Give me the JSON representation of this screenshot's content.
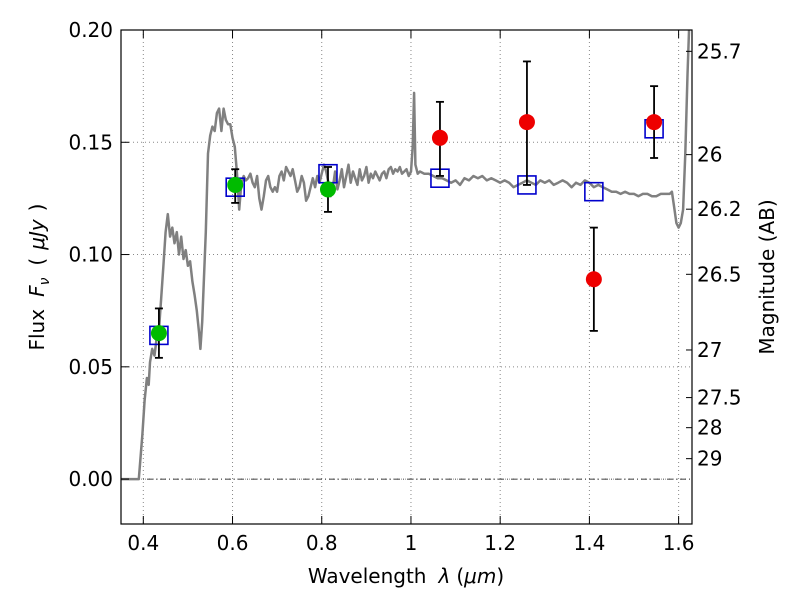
{
  "chart_data": {
    "type": "line",
    "xlabel_prefix": "Wavelength",
    "xlabel_symbol": "λ",
    "xlabel_unit": "μm",
    "ylabel_prefix": "Flux",
    "ylabel_symbol": "F",
    "ylabel_subscript": "ν",
    "ylabel_unit": "μJy",
    "y2label": "Magnitude (AB)",
    "xlim": [
      0.35,
      1.63
    ],
    "ylim": [
      -0.02,
      0.2
    ],
    "grid": true,
    "x_ticks": [
      0.4,
      0.6,
      0.8,
      1.0,
      1.2,
      1.4,
      1.6
    ],
    "x_tick_labels": [
      "0.4",
      "0.6",
      "0.8",
      "1",
      "1.2",
      "1.4",
      "1.6"
    ],
    "y_ticks": [
      0.0,
      0.05,
      0.1,
      0.15,
      0.2
    ],
    "y_tick_labels": [
      "0.00",
      "0.05",
      "0.10",
      "0.15",
      "0.20"
    ],
    "mag_ticks": [
      {
        "label": "25.7",
        "flux": 0.1905
      },
      {
        "label": "26",
        "flux": 0.1445
      },
      {
        "label": "26.2",
        "flux": 0.1202
      },
      {
        "label": "26.5",
        "flux": 0.0912
      },
      {
        "label": "27",
        "flux": 0.0575
      },
      {
        "label": "27.5",
        "flux": 0.0363
      },
      {
        "label": "28",
        "flux": 0.0229
      },
      {
        "label": "29",
        "flux": 0.0091
      }
    ],
    "colors": {
      "model": "#808080",
      "model_photometry": "#0000cc",
      "optical": "#00bb00",
      "nir": "#ee0000",
      "errorbar": "#000000",
      "zero_line": "#000000",
      "grid": "#888888"
    },
    "series": [
      {
        "role": "model spectrum",
        "points": [
          [
            0.35,
            0.0
          ],
          [
            0.39,
            0.0
          ],
          [
            0.398,
            0.02
          ],
          [
            0.403,
            0.035
          ],
          [
            0.408,
            0.045
          ],
          [
            0.412,
            0.042
          ],
          [
            0.415,
            0.052
          ],
          [
            0.42,
            0.058
          ],
          [
            0.425,
            0.055
          ],
          [
            0.43,
            0.063
          ],
          [
            0.435,
            0.066
          ],
          [
            0.44,
            0.08
          ],
          [
            0.445,
            0.095
          ],
          [
            0.45,
            0.11
          ],
          [
            0.455,
            0.118
          ],
          [
            0.46,
            0.108
          ],
          [
            0.465,
            0.112
          ],
          [
            0.47,
            0.105
          ],
          [
            0.475,
            0.11
          ],
          [
            0.48,
            0.1
          ],
          [
            0.485,
            0.108
          ],
          [
            0.49,
            0.098
          ],
          [
            0.495,
            0.102
          ],
          [
            0.5,
            0.095
          ],
          [
            0.505,
            0.097
          ],
          [
            0.51,
            0.088
          ],
          [
            0.515,
            0.082
          ],
          [
            0.52,
            0.075
          ],
          [
            0.525,
            0.065
          ],
          [
            0.528,
            0.058
          ],
          [
            0.532,
            0.07
          ],
          [
            0.54,
            0.11
          ],
          [
            0.545,
            0.145
          ],
          [
            0.55,
            0.153
          ],
          [
            0.555,
            0.157
          ],
          [
            0.56,
            0.155
          ],
          [
            0.565,
            0.163
          ],
          [
            0.57,
            0.165
          ],
          [
            0.575,
            0.155
          ],
          [
            0.58,
            0.165
          ],
          [
            0.585,
            0.16
          ],
          [
            0.59,
            0.158
          ],
          [
            0.595,
            0.158
          ],
          [
            0.6,
            0.152
          ],
          [
            0.605,
            0.148
          ],
          [
            0.61,
            0.136
          ],
          [
            0.615,
            0.12
          ],
          [
            0.62,
            0.132
          ],
          [
            0.625,
            0.135
          ],
          [
            0.63,
            0.133
          ],
          [
            0.635,
            0.134
          ],
          [
            0.64,
            0.136
          ],
          [
            0.645,
            0.132
          ],
          [
            0.65,
            0.13
          ],
          [
            0.655,
            0.135
          ],
          [
            0.66,
            0.125
          ],
          [
            0.665,
            0.12
          ],
          [
            0.67,
            0.126
          ],
          [
            0.675,
            0.133
          ],
          [
            0.68,
            0.135
          ],
          [
            0.685,
            0.13
          ],
          [
            0.69,
            0.128
          ],
          [
            0.695,
            0.13
          ],
          [
            0.7,
            0.128
          ],
          [
            0.705,
            0.135
          ],
          [
            0.71,
            0.137
          ],
          [
            0.715,
            0.133
          ],
          [
            0.72,
            0.139
          ],
          [
            0.725,
            0.137
          ],
          [
            0.73,
            0.135
          ],
          [
            0.735,
            0.138
          ],
          [
            0.74,
            0.133
          ],
          [
            0.745,
            0.128
          ],
          [
            0.75,
            0.13
          ],
          [
            0.755,
            0.135
          ],
          [
            0.76,
            0.132
          ],
          [
            0.765,
            0.124
          ],
          [
            0.77,
            0.126
          ],
          [
            0.775,
            0.13
          ],
          [
            0.78,
            0.134
          ],
          [
            0.785,
            0.13
          ],
          [
            0.79,
            0.135
          ],
          [
            0.795,
            0.132
          ],
          [
            0.8,
            0.136
          ],
          [
            0.805,
            0.14
          ],
          [
            0.81,
            0.137
          ],
          [
            0.815,
            0.132
          ],
          [
            0.82,
            0.126
          ],
          [
            0.825,
            0.13
          ],
          [
            0.83,
            0.137
          ],
          [
            0.835,
            0.129
          ],
          [
            0.84,
            0.133
          ],
          [
            0.845,
            0.138
          ],
          [
            0.85,
            0.13
          ],
          [
            0.855,
            0.135
          ],
          [
            0.86,
            0.14
          ],
          [
            0.865,
            0.132
          ],
          [
            0.87,
            0.137
          ],
          [
            0.875,
            0.134
          ],
          [
            0.88,
            0.131
          ],
          [
            0.885,
            0.138
          ],
          [
            0.89,
            0.133
          ],
          [
            0.895,
            0.135
          ],
          [
            0.9,
            0.139
          ],
          [
            0.905,
            0.132
          ],
          [
            0.91,
            0.136
          ],
          [
            0.915,
            0.134
          ],
          [
            0.92,
            0.137
          ],
          [
            0.925,
            0.135
          ],
          [
            0.93,
            0.133
          ],
          [
            0.935,
            0.136
          ],
          [
            0.94,
            0.137
          ],
          [
            0.945,
            0.134
          ],
          [
            0.95,
            0.138
          ],
          [
            0.955,
            0.139
          ],
          [
            0.96,
            0.136
          ],
          [
            0.965,
            0.138
          ],
          [
            0.97,
            0.137
          ],
          [
            0.975,
            0.139
          ],
          [
            0.98,
            0.136
          ],
          [
            0.985,
            0.137
          ],
          [
            0.99,
            0.138
          ],
          [
            0.995,
            0.135
          ],
          [
            1.0,
            0.137
          ],
          [
            1.004,
            0.148
          ],
          [
            1.007,
            0.172
          ],
          [
            1.01,
            0.14
          ],
          [
            1.015,
            0.136
          ],
          [
            1.02,
            0.137
          ],
          [
            1.03,
            0.136
          ],
          [
            1.04,
            0.136
          ],
          [
            1.05,
            0.135
          ],
          [
            1.06,
            0.134
          ],
          [
            1.07,
            0.134
          ],
          [
            1.08,
            0.133
          ],
          [
            1.09,
            0.132
          ],
          [
            1.1,
            0.133
          ],
          [
            1.11,
            0.131
          ],
          [
            1.12,
            0.134
          ],
          [
            1.13,
            0.133
          ],
          [
            1.14,
            0.135
          ],
          [
            1.15,
            0.134
          ],
          [
            1.16,
            0.135
          ],
          [
            1.17,
            0.133
          ],
          [
            1.18,
            0.134
          ],
          [
            1.19,
            0.133
          ],
          [
            1.2,
            0.132
          ],
          [
            1.21,
            0.133
          ],
          [
            1.22,
            0.132
          ],
          [
            1.23,
            0.13
          ],
          [
            1.24,
            0.131
          ],
          [
            1.25,
            0.132
          ],
          [
            1.26,
            0.133
          ],
          [
            1.27,
            0.132
          ],
          [
            1.28,
            0.131
          ],
          [
            1.29,
            0.133
          ],
          [
            1.3,
            0.132
          ],
          [
            1.31,
            0.133
          ],
          [
            1.32,
            0.131
          ],
          [
            1.33,
            0.132
          ],
          [
            1.34,
            0.133
          ],
          [
            1.35,
            0.132
          ],
          [
            1.36,
            0.13
          ],
          [
            1.37,
            0.132
          ],
          [
            1.38,
            0.131
          ],
          [
            1.39,
            0.133
          ],
          [
            1.4,
            0.132
          ],
          [
            1.41,
            0.13
          ],
          [
            1.42,
            0.131
          ],
          [
            1.43,
            0.13
          ],
          [
            1.44,
            0.129
          ],
          [
            1.45,
            0.128
          ],
          [
            1.46,
            0.128
          ],
          [
            1.47,
            0.127
          ],
          [
            1.48,
            0.128
          ],
          [
            1.49,
            0.127
          ],
          [
            1.5,
            0.127
          ],
          [
            1.51,
            0.126
          ],
          [
            1.52,
            0.127
          ],
          [
            1.53,
            0.127
          ],
          [
            1.54,
            0.126
          ],
          [
            1.55,
            0.126
          ],
          [
            1.56,
            0.127
          ],
          [
            1.57,
            0.127
          ],
          [
            1.58,
            0.127
          ],
          [
            1.585,
            0.128
          ],
          [
            1.59,
            0.121
          ],
          [
            1.595,
            0.114
          ],
          [
            1.6,
            0.112
          ],
          [
            1.605,
            0.114
          ],
          [
            1.61,
            0.12
          ],
          [
            1.615,
            0.145
          ],
          [
            1.62,
            0.18
          ],
          [
            1.625,
            0.21
          ]
        ]
      },
      {
        "role": "model photometry",
        "points": [
          [
            0.435,
            0.064
          ],
          [
            0.606,
            0.13
          ],
          [
            0.814,
            0.136
          ],
          [
            1.065,
            0.134
          ],
          [
            1.26,
            0.131
          ],
          [
            1.41,
            0.128
          ],
          [
            1.545,
            0.156
          ]
        ]
      },
      {
        "role": "optical photometry",
        "points": [
          {
            "x": 0.435,
            "y": 0.065,
            "lo": 0.054,
            "hi": 0.076
          },
          {
            "x": 0.606,
            "y": 0.131,
            "lo": 0.123,
            "hi": 0.138
          },
          {
            "x": 0.814,
            "y": 0.129,
            "lo": 0.119,
            "hi": 0.139
          }
        ]
      },
      {
        "role": "near-infrared photometry",
        "points": [
          {
            "x": 1.065,
            "y": 0.152,
            "lo": 0.135,
            "hi": 0.168
          },
          {
            "x": 1.26,
            "y": 0.159,
            "lo": 0.131,
            "hi": 0.186
          },
          {
            "x": 1.41,
            "y": 0.089,
            "lo": 0.066,
            "hi": 0.112
          },
          {
            "x": 1.545,
            "y": 0.159,
            "lo": 0.143,
            "hi": 0.175
          }
        ]
      }
    ]
  }
}
